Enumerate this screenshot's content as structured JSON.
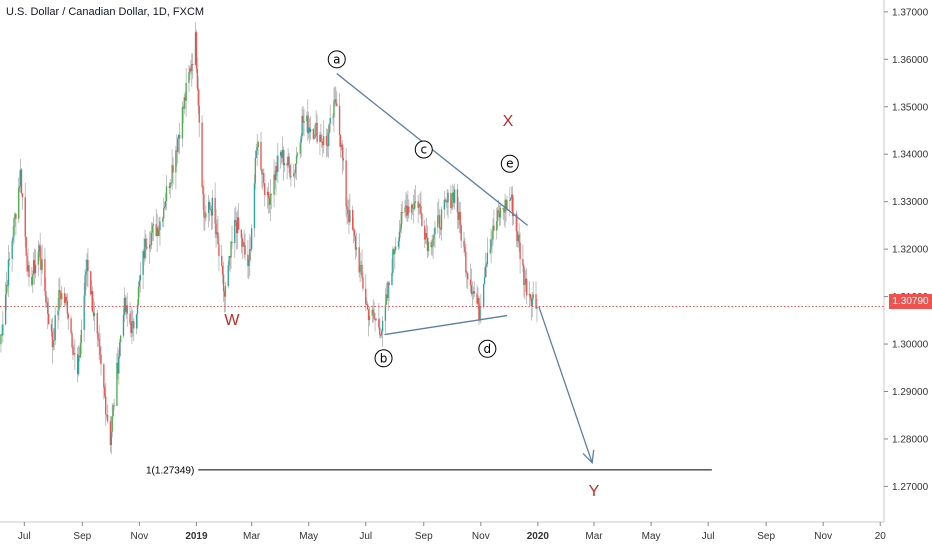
{
  "header": {
    "title": "U.S. Dollar / Canadian Dollar, 1D, FXCM"
  },
  "last_price": {
    "label": "1.30790",
    "value": 1.3079,
    "color": "#ef5350"
  },
  "colors": {
    "up": "#26a69a",
    "up_bright": "#4caf50",
    "down": "#ef5350",
    "trendline": "#5b7fa6",
    "labels_red": "#c62828"
  },
  "chart_data": {
    "type": "candlestick",
    "symbol": "USDCAD",
    "timeframe": "1D",
    "source": "FXCM",
    "y_ticks": [
      "1.27000",
      "1.28000",
      "1.29000",
      "1.30000",
      "1.31000",
      "1.32000",
      "1.33000",
      "1.34000",
      "1.35000",
      "1.36000",
      "1.37000"
    ],
    "x_ticks": [
      {
        "label": "Jul",
        "date": "2018-07-01",
        "bold": false
      },
      {
        "label": "Sep",
        "date": "2018-09-01",
        "bold": false
      },
      {
        "label": "Nov",
        "date": "2018-11-01",
        "bold": false
      },
      {
        "label": "2019",
        "date": "2019-01-01",
        "bold": true
      },
      {
        "label": "Mar",
        "date": "2019-03-01",
        "bold": false
      },
      {
        "label": "May",
        "date": "2019-05-01",
        "bold": false
      },
      {
        "label": "Jul",
        "date": "2019-07-01",
        "bold": false
      },
      {
        "label": "Sep",
        "date": "2019-09-01",
        "bold": false
      },
      {
        "label": "Nov",
        "date": "2019-11-01",
        "bold": false
      },
      {
        "label": "2020",
        "date": "2020-01-01",
        "bold": true
      },
      {
        "label": "Mar",
        "date": "2020-03-01",
        "bold": false
      },
      {
        "label": "May",
        "date": "2020-05-01",
        "bold": false
      },
      {
        "label": "Jul",
        "date": "2020-07-01",
        "bold": false
      },
      {
        "label": "Sep",
        "date": "2020-09-01",
        "bold": false
      },
      {
        "label": "Nov",
        "date": "2020-11-01",
        "bold": false
      },
      {
        "label": "20",
        "date": "2021-01-01",
        "bold": false
      }
    ],
    "ylim": [
      1.2625,
      1.3725
    ],
    "xlim": [
      "2018-06-05",
      "2021-01-05"
    ],
    "price_path": [
      [
        "2018-06-05",
        1.3
      ],
      [
        "2018-06-14",
        1.316
      ],
      [
        "2018-06-27",
        1.336
      ],
      [
        "2018-07-06",
        1.312
      ],
      [
        "2018-07-17",
        1.32
      ],
      [
        "2018-07-31",
        1.3
      ],
      [
        "2018-08-08",
        1.311
      ],
      [
        "2018-08-16",
        1.308
      ],
      [
        "2018-08-27",
        1.293
      ],
      [
        "2018-09-06",
        1.318
      ],
      [
        "2018-09-18",
        1.299
      ],
      [
        "2018-10-01",
        1.28
      ],
      [
        "2018-10-15",
        1.308
      ],
      [
        "2018-10-25",
        1.303
      ],
      [
        "2018-11-08",
        1.322
      ],
      [
        "2018-11-22",
        1.325
      ],
      [
        "2018-12-07",
        1.338
      ],
      [
        "2018-12-20",
        1.352
      ],
      [
        "2018-12-31",
        1.364
      ],
      [
        "2019-01-09",
        1.327
      ],
      [
        "2019-01-18",
        1.329
      ],
      [
        "2019-01-31",
        1.31
      ],
      [
        "2019-02-12",
        1.326
      ],
      [
        "2019-02-26",
        1.316
      ],
      [
        "2019-03-07",
        1.343
      ],
      [
        "2019-03-18",
        1.33
      ],
      [
        "2019-04-01",
        1.34
      ],
      [
        "2019-04-15",
        1.336
      ],
      [
        "2019-04-24",
        1.347
      ],
      [
        "2019-05-09",
        1.345
      ],
      [
        "2019-05-20",
        1.342
      ],
      [
        "2019-05-31",
        1.352
      ],
      [
        "2019-06-10",
        1.33
      ],
      [
        "2019-06-21",
        1.32
      ],
      [
        "2019-07-03",
        1.307
      ],
      [
        "2019-07-19",
        1.303
      ],
      [
        "2019-08-01",
        1.321
      ],
      [
        "2019-08-13",
        1.329
      ],
      [
        "2019-08-26",
        1.33
      ],
      [
        "2019-09-06",
        1.321
      ],
      [
        "2019-09-16",
        1.325
      ],
      [
        "2019-09-27",
        1.33
      ],
      [
        "2019-10-04",
        1.332
      ],
      [
        "2019-10-17",
        1.316
      ],
      [
        "2019-10-30",
        1.307
      ],
      [
        "2019-11-08",
        1.32
      ],
      [
        "2019-11-20",
        1.327
      ],
      [
        "2019-12-03",
        1.331
      ],
      [
        "2019-12-10",
        1.323
      ],
      [
        "2019-12-18",
        1.313
      ],
      [
        "2019-12-31",
        1.3079
      ]
    ],
    "wave_labels": [
      {
        "text": "a",
        "date": "2019-05-31",
        "price": 1.36
      },
      {
        "text": "b",
        "date": "2019-07-20",
        "price": 1.297
      },
      {
        "text": "c",
        "date": "2019-09-01",
        "price": 1.341
      },
      {
        "text": "d",
        "date": "2019-11-08",
        "price": 1.299
      },
      {
        "text": "e",
        "date": "2019-12-02",
        "price": 1.338
      }
    ],
    "structure_labels": [
      {
        "text": "W",
        "date": "2019-02-08",
        "price": 1.304
      },
      {
        "text": "X",
        "date": "2019-11-30",
        "price": 1.346
      },
      {
        "text": "Y",
        "date": "2020-03-01",
        "price": 1.268
      }
    ],
    "trendlines": [
      {
        "from": [
          "2019-05-31",
          1.357
        ],
        "to": [
          "2019-12-21",
          1.325
        ]
      },
      {
        "from": [
          "2019-07-21",
          1.302
        ],
        "to": [
          "2019-11-29",
          1.306
        ]
      }
    ],
    "projection_arrow": {
      "from": [
        "2020-01-02",
        1.3079
      ],
      "to": [
        "2020-02-28",
        1.275
      ]
    },
    "fib_level": {
      "label": "1(1.27349)",
      "price": 1.27349,
      "from": "2019-01-03",
      "to": "2020-07-05"
    }
  }
}
